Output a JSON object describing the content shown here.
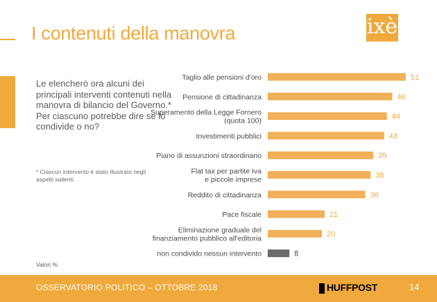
{
  "header": {
    "title": "I contenuti della manovra",
    "logo_text": "ixè"
  },
  "question": {
    "text": "Le elencherò ora alcuni dei principali interventi contenuti nella manovra di bilancio del Governo.* Per ciascuno potrebbe dire se lo condivide o no?"
  },
  "footnote": "* Ciascun intervento è stato illustrato negli aspetti salienti.",
  "valori_label": "Valori %",
  "footer": {
    "left": "OSSERVATORIO POLITICO – OTTOBRE 2018",
    "brand": "HUFFPOST",
    "page": "14"
  },
  "colors": {
    "accent": "#f0a93c",
    "bar": "#f2b05a",
    "bar_muted": "#6a6a6a",
    "text": "#5a5a5a"
  },
  "chart_data": {
    "type": "bar",
    "orientation": "horizontal",
    "title": "",
    "xlabel": "",
    "ylabel": "",
    "xlim": [
      0,
      51
    ],
    "categories": [
      [
        "Taglio alle pensioni d'oro"
      ],
      [
        "Pensione di cittadinanza"
      ],
      [
        "Superamento della Legge Fornero",
        "(quota 100)"
      ],
      [
        "Investimenti pubblici"
      ],
      [
        "Piano di assunzioni straordinario"
      ],
      [
        "Flat tax per partite Iva",
        "e piccole imprese"
      ],
      [
        "Reddito di cittadinanza"
      ],
      [
        "Pace fiscale"
      ],
      [
        "Eliminazione graduale del",
        "finanziamento pubblico all'editoria"
      ],
      [
        "non condivido nessun intervento"
      ]
    ],
    "values": [
      51,
      46,
      44,
      43,
      39,
      38,
      36,
      21,
      20,
      8
    ],
    "bar_colors": [
      "accent",
      "accent",
      "accent",
      "accent",
      "accent",
      "accent",
      "accent",
      "accent",
      "accent",
      "muted"
    ]
  }
}
